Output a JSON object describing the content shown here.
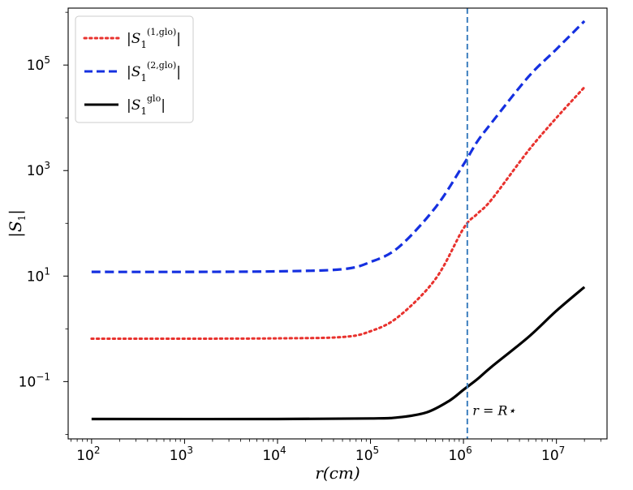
{
  "chart_data": {
    "type": "line",
    "title": "",
    "xlabel": "r(cm)",
    "ylabel": "|S1|",
    "xscale": "log",
    "yscale": "log",
    "xlim": [
      56,
      35000000
    ],
    "ylim": [
      0.0082,
      1200000
    ],
    "x_ticks": [
      {
        "value": 100,
        "base": "10",
        "exp": "2"
      },
      {
        "value": 1000,
        "base": "10",
        "exp": "3"
      },
      {
        "value": 10000,
        "base": "10",
        "exp": "4"
      },
      {
        "value": 100000,
        "base": "10",
        "exp": "5"
      },
      {
        "value": 1000000,
        "base": "10",
        "exp": "6"
      },
      {
        "value": 10000000,
        "base": "10",
        "exp": "7"
      }
    ],
    "y_ticks": [
      {
        "value": 0.1,
        "base": "10",
        "exp": "−1"
      },
      {
        "value": 10,
        "base": "10",
        "exp": "1"
      },
      {
        "value": 1000,
        "base": "10",
        "exp": "3"
      },
      {
        "value": 100000,
        "base": "10",
        "exp": "5"
      }
    ],
    "legend_position": "upper-left",
    "series": [
      {
        "name": "|S1^(1,glo)|",
        "label_main": "|S",
        "label_sub": "1",
        "label_sup": "(1,glo)",
        "label_end": "|",
        "color": "#e8322e",
        "style": "dotted",
        "x": [
          100,
          1000,
          10000,
          50000,
          100000,
          200000,
          500000,
          1000000,
          1400000,
          2000000,
          5000000,
          10000000,
          20000000
        ],
        "y": [
          0.65,
          0.65,
          0.66,
          0.7,
          0.9,
          1.7,
          8.8,
          80,
          150,
          280,
          2400,
          10000,
          38000
        ]
      },
      {
        "name": "|S1^(2,glo)|",
        "label_main": "|S",
        "label_sub": "1",
        "label_sup": "(2,glo)",
        "label_end": "|",
        "color": "#1530e0",
        "style": "dashed",
        "x": [
          100,
          1000,
          10000,
          50000,
          100000,
          200000,
          500000,
          1000000,
          1400000,
          2000000,
          5000000,
          10000000,
          20000000
        ],
        "y": [
          12,
          12,
          12.3,
          13.5,
          18.5,
          35,
          200,
          1300,
          3500,
          8000,
          60000,
          200000,
          680000
        ]
      },
      {
        "name": "|S1^glo|",
        "label_main": "|S",
        "label_sub": "1",
        "label_sup": "glo",
        "label_end": "|",
        "color": "#000000",
        "style": "solid",
        "x": [
          100,
          10000,
          100000,
          200000,
          400000,
          700000,
          1000000,
          1400000,
          2000000,
          5000000,
          10000000,
          20000000
        ],
        "y": [
          0.0195,
          0.0195,
          0.02,
          0.021,
          0.026,
          0.043,
          0.07,
          0.11,
          0.19,
          0.7,
          2.2,
          6.2
        ]
      }
    ],
    "vline": {
      "x": 1100000,
      "color": "#3d7fbf",
      "style": "dashed"
    },
    "annotation": {
      "text": "r = R⋆",
      "x": 1250000,
      "y": 0.028
    }
  }
}
